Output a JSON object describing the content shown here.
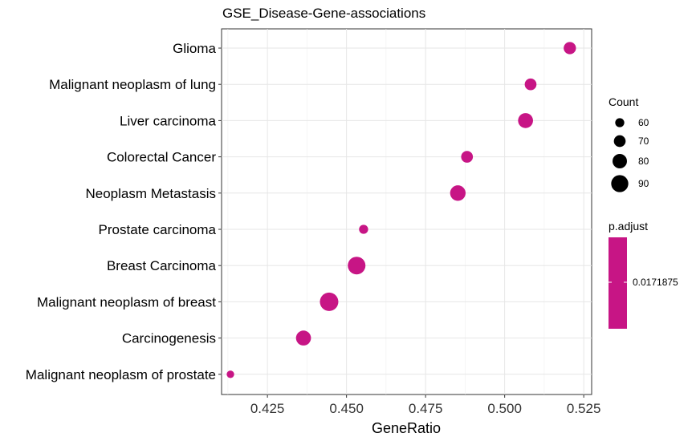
{
  "chart_data": {
    "type": "scatter",
    "title": "GSE_Disease-Gene-associations",
    "xlabel": "GeneRatio",
    "ylabel": "",
    "xlim": [
      0.4105,
      0.5275
    ],
    "xticks": [
      "0.425",
      "0.450",
      "0.475",
      "0.500",
      "0.525"
    ],
    "xtick_values": [
      0.425,
      0.45,
      0.475,
      0.5,
      0.525
    ],
    "categories": [
      "Glioma",
      "Malignant neoplasm of lung",
      "Liver carcinoma",
      "Colorectal Cancer",
      "Neoplasm Metastasis",
      "Prostate carcinoma",
      "Breast Carcinoma",
      "Malignant neoplasm of breast",
      "Carcinogenesis",
      "Malignant neoplasm of prostate"
    ],
    "x": [
      0.5206,
      0.5082,
      0.5066,
      0.4881,
      0.4852,
      0.4554,
      0.4532,
      0.4445,
      0.4364,
      0.4133
    ],
    "count": [
      72,
      70,
      82,
      70,
      84,
      60,
      92,
      95,
      82,
      54
    ],
    "p_adjust": [
      0.0171875,
      0.0171875,
      0.0171875,
      0.0171875,
      0.0171875,
      0.0171875,
      0.0171875,
      0.0171875,
      0.0171875,
      0.0171875
    ],
    "point_color": "#C71585",
    "grid": true,
    "size_legend": {
      "title": "Count",
      "values": [
        60,
        70,
        80,
        90
      ],
      "labels": [
        "60",
        "70",
        "80",
        "90"
      ]
    },
    "color_legend": {
      "title": "p.adjust",
      "labels": [
        "0.0171875"
      ]
    }
  }
}
